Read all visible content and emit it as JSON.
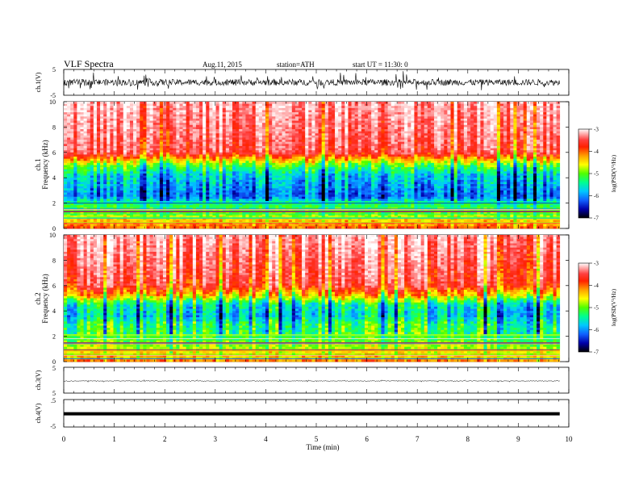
{
  "header": {
    "title": "VLF  Spectra",
    "date": "Aug.11, 2015",
    "station": "station=ATH",
    "start": "start  UT  =    11:30: 0"
  },
  "colors": {
    "spectrum_ramp": [
      "#000000",
      "#0000aa",
      "#1060ff",
      "#00c8ff",
      "#00ff90",
      "#50ff00",
      "#ffff00",
      "#ffa000",
      "#ff2000",
      "#ff4040",
      "#ffb0b0",
      "#ffffff"
    ],
    "trace": "#000000"
  },
  "chart_data": [
    {
      "type": "line",
      "panel": "ch1-waveform",
      "ylabel": "ch.1(V)",
      "ylim": [
        -5,
        5
      ],
      "y_ticks": [
        "5",
        "-5"
      ],
      "xlim": [
        0,
        10
      ],
      "data_end_min": 9.82,
      "series": [
        {
          "description_level": "noisy trace centred near 0 V",
          "mean": 0,
          "amplitude": 1.2,
          "spike_amplitude": 3.5
        }
      ]
    },
    {
      "type": "heatmap",
      "panel": "ch1-spectrogram",
      "ylabel": "ch.1\nFrequency  (kHz)",
      "ylim": [
        0,
        10
      ],
      "y_ticks": [
        "0",
        "2",
        "4",
        "6",
        "8",
        "10"
      ],
      "xlim": [
        0,
        10
      ],
      "data_end_min": 9.82,
      "colorbar": {
        "label": "log(PSD(V²/Hz)",
        "range": [
          -7,
          -3
        ],
        "ticks": [
          "-3",
          "-4",
          "-5",
          "-6",
          "-7"
        ]
      },
      "profile_khz_logpsd": [
        [
          0,
          -4.2
        ],
        [
          0.6,
          -4.6
        ],
        [
          1.2,
          -5.2
        ],
        [
          2.0,
          -5.5
        ],
        [
          2.5,
          -6.2
        ],
        [
          3.4,
          -6.0
        ],
        [
          4.2,
          -5.8
        ],
        [
          5.0,
          -5.2
        ],
        [
          6.0,
          -3.7
        ],
        [
          10,
          -3.3
        ]
      ]
    },
    {
      "type": "heatmap",
      "panel": "ch2-spectrogram",
      "ylabel": "ch.2\nFrequency  (kHz)",
      "ylim": [
        0,
        10
      ],
      "y_ticks": [
        "0",
        "2",
        "4",
        "6",
        "8",
        "10"
      ],
      "xlim": [
        0,
        10
      ],
      "data_end_min": 9.82,
      "colorbar": {
        "label": "log(PSD(V²/Hz)",
        "range": [
          -7,
          -3
        ],
        "ticks": [
          "-3",
          "-4",
          "-5",
          "-6",
          "-7"
        ]
      },
      "profile_khz_logpsd": [
        [
          0,
          -4.3
        ],
        [
          0.6,
          -4.7
        ],
        [
          1.2,
          -5.0
        ],
        [
          2.0,
          -5.3
        ],
        [
          3.0,
          -5.4
        ],
        [
          3.6,
          -5.8
        ],
        [
          4.5,
          -5.6
        ],
        [
          5.2,
          -4.6
        ],
        [
          6.0,
          -3.8
        ],
        [
          10,
          -3.3
        ]
      ]
    },
    {
      "type": "line",
      "panel": "ch3-waveform",
      "ylabel": "ch.3(V)",
      "ylim": [
        -5,
        5
      ],
      "y_ticks": [
        "5"
      ],
      "xlim": [
        0,
        10
      ],
      "data_end_min": 9.82,
      "series": [
        {
          "description_level": "flat trace slightly below 0 V",
          "mean": -0.3,
          "amplitude": 0.15,
          "spike_amplitude": 0.4
        }
      ]
    },
    {
      "type": "line",
      "panel": "ch4-waveform",
      "ylabel": "ch.4(V)",
      "ylim": [
        -5,
        5
      ],
      "y_ticks": [
        "5",
        ".5",
        "-5"
      ],
      "xlim": [
        0,
        10
      ],
      "data_end_min": 9.82,
      "series": [
        {
          "description_level": "thick flat trace near 0 V",
          "mean": -0.2,
          "amplitude": 0.0,
          "spike_amplitude": 0.0
        }
      ]
    }
  ],
  "x_axis": {
    "label": "Time  (min)",
    "ticks": [
      "0",
      "1",
      "2",
      "3",
      "4",
      "5",
      "6",
      "7",
      "8",
      "9",
      "10"
    ]
  }
}
